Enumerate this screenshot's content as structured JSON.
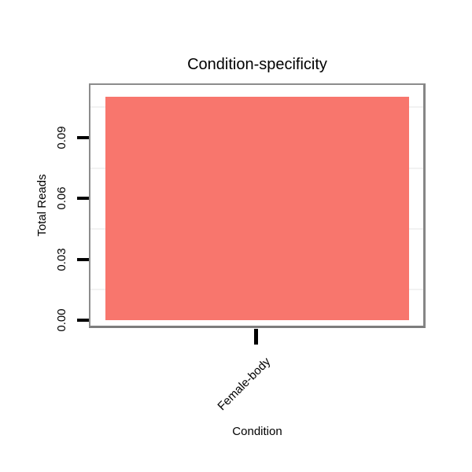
{
  "figure": {
    "background_color": "#FFFFFF",
    "text_color": "#000000"
  },
  "chart_data": {
    "type": "bar",
    "title": "Condition-specificity",
    "xlabel": "Condition",
    "ylabel": "Total Reads",
    "categories": [
      "Female-body"
    ],
    "values": [
      0.11
    ],
    "y_ticks": [
      {
        "value": 0.0,
        "label": "0.00"
      },
      {
        "value": 0.03,
        "label": "0.03"
      },
      {
        "value": 0.06,
        "label": "0.06"
      },
      {
        "value": 0.09,
        "label": "0.09"
      }
    ],
    "y_minor_gridlines": [
      0.015,
      0.045,
      0.075,
      0.105
    ],
    "ylim": [
      -0.004,
      0.116
    ],
    "grid": "minor horizontal only",
    "legend": "none",
    "bar_color": "#F8766D",
    "panel_border_color": "#8C8C8C",
    "tick_color": "#000000",
    "gridline_color": "#F2F2F2"
  }
}
